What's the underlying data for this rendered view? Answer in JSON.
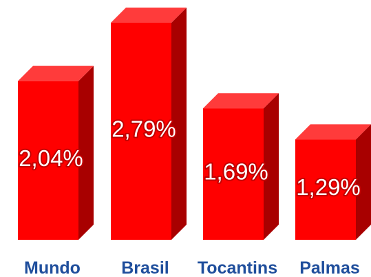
{
  "chart_data": {
    "type": "bar",
    "style": "3d",
    "categories": [
      "Mundo",
      "Brasil",
      "Tocantins",
      "Palmas"
    ],
    "values": [
      2.04,
      2.79,
      1.69,
      1.29
    ],
    "value_labels": [
      "2,04%",
      "2,79%",
      "1,69%",
      "1,29%"
    ],
    "title": "",
    "xlabel": "",
    "ylabel": "",
    "ylim": [
      0,
      2.79
    ],
    "grid": false,
    "legend": "none"
  },
  "colors": {
    "bar_front": "#ff0000",
    "bar_side": "#a80000",
    "bar_top": "#ff3b3b",
    "label_text": "#ffffff",
    "label_stroke": "#c00000",
    "category_text": "#1f4e9c"
  }
}
